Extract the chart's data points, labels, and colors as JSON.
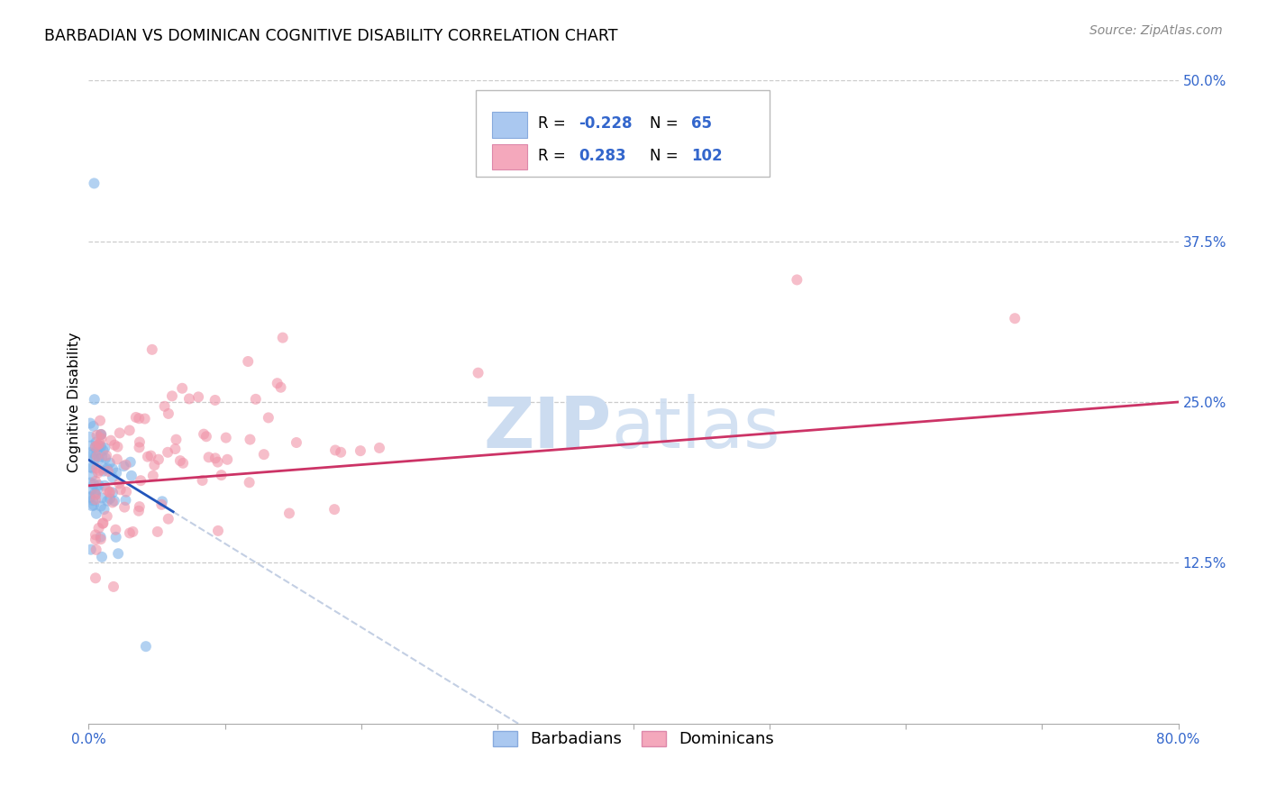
{
  "title": "BARBADIAN VS DOMINICAN COGNITIVE DISABILITY CORRELATION CHART",
  "source": "Source: ZipAtlas.com",
  "ylabel_label": "Cognitive Disability",
  "xlim": [
    0.0,
    0.8
  ],
  "ylim": [
    0.0,
    0.5
  ],
  "y_tick_positions_right": [
    0.125,
    0.25,
    0.375,
    0.5
  ],
  "y_tick_labels_right": [
    "12.5%",
    "25.0%",
    "37.5%",
    "50.0%"
  ],
  "barbadian_R": -0.228,
  "barbadian_N": 65,
  "dominican_R": 0.283,
  "dominican_N": 102,
  "barbadian_color": "#7fb3e8",
  "dominican_color": "#f093a8",
  "barbadian_line_color": "#2255bb",
  "dominican_line_color": "#cc3366",
  "scatter_alpha": 0.6,
  "scatter_size": 75,
  "background_color": "#ffffff",
  "grid_color": "#cccccc",
  "legend_R1": "-0.228",
  "legend_N1": "65",
  "legend_R2": "0.283",
  "legend_N2": "102",
  "legend_color1": "#aac8f0",
  "legend_color2": "#f4a8bc",
  "watermark_zip_color": "#ccdcf0",
  "watermark_atlas_color": "#ccdcf0"
}
